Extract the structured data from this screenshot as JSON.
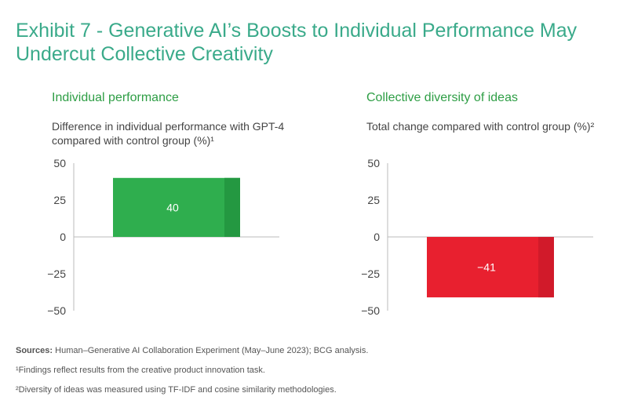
{
  "title": "Exhibit 7 - Generative AI’s Boosts to Individual Performance May Undercut Collective Creativity",
  "panels": [
    {
      "heading": "Individual performance",
      "subtitle": "Difference in individual performance with GPT-4 compared with control group (%)¹"
    },
    {
      "heading": "Collective diversity of ideas",
      "subtitle": "Total change compared with control group (%)²"
    }
  ],
  "chart_data": [
    {
      "type": "bar",
      "title": "Individual performance",
      "ylabel": "Difference in individual performance with GPT-4 compared with control group (%)¹",
      "categories": [
        ""
      ],
      "values": [
        40
      ],
      "data_labels": [
        "40"
      ],
      "ylim": [
        -50,
        50
      ],
      "yticks": [
        50,
        25,
        0,
        -25,
        -50
      ],
      "ytick_labels": [
        "50",
        "25",
        "0",
        "−25",
        "−50"
      ],
      "colors": {
        "bar": "#2fae4e",
        "bar_shade": "#249841"
      },
      "grid": false
    },
    {
      "type": "bar",
      "title": "Collective diversity of ideas",
      "ylabel": "Total change compared with control group (%)²",
      "categories": [
        ""
      ],
      "values": [
        -41
      ],
      "data_labels": [
        "−41"
      ],
      "ylim": [
        -50,
        50
      ],
      "yticks": [
        50,
        25,
        0,
        -25,
        -50
      ],
      "ytick_labels": [
        "50",
        "25",
        "0",
        "−25",
        "−50"
      ],
      "colors": {
        "bar": "#e8202f",
        "bar_shade": "#d11a2a"
      },
      "grid": false
    }
  ],
  "footnotes": {
    "sources_label": "Sources:",
    "sources_text": " Human–Generative AI Collaboration Experiment (May–June 2023); BCG analysis.",
    "note1": "¹Findings reflect results from the creative product innovation task.",
    "note2": "²Diversity of ideas was measured using TF-IDF and cosine similarity methodologies."
  },
  "colors": {
    "title": "#3aaa8a",
    "panel_heading": "#2e9e45",
    "axis": "#bbbbbb",
    "tick_text": "#444444"
  }
}
